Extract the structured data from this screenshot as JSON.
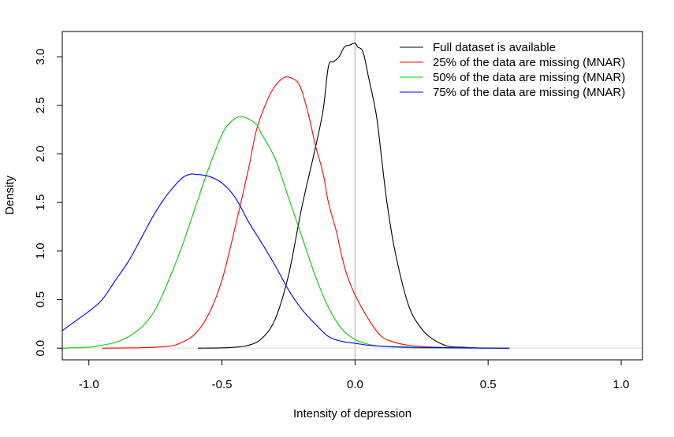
{
  "chart_data": {
    "type": "line",
    "title": "",
    "xlabel": "Intensity of depression",
    "ylabel": "Density",
    "xlim": [
      -1.1,
      1.08
    ],
    "ylim": [
      -0.12,
      3.26
    ],
    "xticks": [
      -1.0,
      -0.5,
      0.0,
      0.5,
      1.0
    ],
    "xtick_labels": [
      "-1.0",
      "-0.5",
      "0.0",
      "0.5",
      "1.0"
    ],
    "yticks": [
      0.0,
      0.5,
      1.0,
      1.5,
      2.0,
      2.5,
      3.0
    ],
    "ytick_labels": [
      "0.0",
      "0.5",
      "1.0",
      "1.5",
      "2.0",
      "2.5",
      "3.0"
    ],
    "grid": false,
    "legend_position": "top-right",
    "reference_lines": [
      {
        "orientation": "vertical",
        "x": 0.0,
        "color": "#bebebe"
      },
      {
        "orientation": "horizontal",
        "y": 0.0,
        "color": "#e6e6e6"
      }
    ],
    "series": [
      {
        "name": "Full dataset is available",
        "color": "#000000",
        "x": [
          -0.59,
          -0.5,
          -0.45,
          -0.4,
          -0.35,
          -0.3,
          -0.25,
          -0.2,
          -0.15,
          -0.12,
          -0.1,
          -0.08,
          -0.06,
          -0.04,
          -0.02,
          0.0,
          0.01,
          0.03,
          0.05,
          0.08,
          0.1,
          0.12,
          0.15,
          0.2,
          0.25,
          0.3,
          0.35,
          0.4,
          0.45,
          0.5,
          0.58
        ],
        "y": [
          0.0,
          0.003,
          0.01,
          0.03,
          0.1,
          0.3,
          0.75,
          1.45,
          2.05,
          2.45,
          2.9,
          2.95,
          3.0,
          3.1,
          3.12,
          3.14,
          3.1,
          3.05,
          2.8,
          2.4,
          1.95,
          1.5,
          1.0,
          0.45,
          0.2,
          0.08,
          0.02,
          0.01,
          0.003,
          0.001,
          0.0
        ]
      },
      {
        "name": "25% of the data are missing (MNAR)",
        "color": "#ff0000",
        "x": [
          -0.95,
          -0.8,
          -0.7,
          -0.65,
          -0.6,
          -0.55,
          -0.5,
          -0.45,
          -0.4,
          -0.37,
          -0.33,
          -0.3,
          -0.27,
          -0.25,
          -0.22,
          -0.2,
          -0.17,
          -0.15,
          -0.12,
          -0.1,
          -0.07,
          -0.05,
          -0.03,
          0.0,
          0.05,
          0.1,
          0.15,
          0.2,
          0.3,
          0.4,
          0.58
        ],
        "y": [
          0.0,
          0.005,
          0.02,
          0.06,
          0.15,
          0.35,
          0.7,
          1.25,
          1.85,
          2.25,
          2.55,
          2.7,
          2.78,
          2.79,
          2.75,
          2.65,
          2.35,
          2.1,
          1.8,
          1.5,
          1.2,
          0.95,
          0.75,
          0.55,
          0.3,
          0.12,
          0.06,
          0.03,
          0.01,
          0.003,
          0.0
        ]
      },
      {
        "name": "50% of the data are missing (MNAR)",
        "color": "#00cd00",
        "x": [
          -1.1,
          -1.0,
          -0.95,
          -0.9,
          -0.85,
          -0.8,
          -0.75,
          -0.7,
          -0.65,
          -0.6,
          -0.55,
          -0.5,
          -0.47,
          -0.44,
          -0.42,
          -0.4,
          -0.37,
          -0.35,
          -0.3,
          -0.25,
          -0.2,
          -0.15,
          -0.1,
          -0.05,
          0.0,
          0.05,
          0.1,
          0.2,
          0.3,
          0.4,
          0.58
        ],
        "y": [
          0.0,
          0.01,
          0.03,
          0.06,
          0.12,
          0.22,
          0.4,
          0.7,
          1.05,
          1.45,
          1.85,
          2.2,
          2.32,
          2.38,
          2.38,
          2.36,
          2.3,
          2.2,
          1.95,
          1.55,
          1.15,
          0.75,
          0.42,
          0.2,
          0.09,
          0.04,
          0.02,
          0.005,
          0.002,
          0.001,
          0.0
        ]
      },
      {
        "name": "75% of the data are missing (MNAR)",
        "color": "#0000ff",
        "x": [
          -1.1,
          -1.05,
          -1.0,
          -0.95,
          -0.9,
          -0.85,
          -0.8,
          -0.75,
          -0.7,
          -0.65,
          -0.62,
          -0.6,
          -0.55,
          -0.5,
          -0.45,
          -0.4,
          -0.35,
          -0.3,
          -0.25,
          -0.2,
          -0.15,
          -0.1,
          -0.05,
          0.0,
          0.05,
          0.1,
          0.2,
          0.3,
          0.4,
          0.5,
          0.58
        ],
        "y": [
          0.18,
          0.28,
          0.38,
          0.5,
          0.7,
          0.9,
          1.15,
          1.4,
          1.6,
          1.75,
          1.79,
          1.79,
          1.77,
          1.7,
          1.55,
          1.3,
          1.08,
          0.85,
          0.6,
          0.4,
          0.25,
          0.12,
          0.07,
          0.05,
          0.03,
          0.02,
          0.01,
          0.006,
          0.003,
          0.001,
          0.0
        ]
      }
    ]
  }
}
